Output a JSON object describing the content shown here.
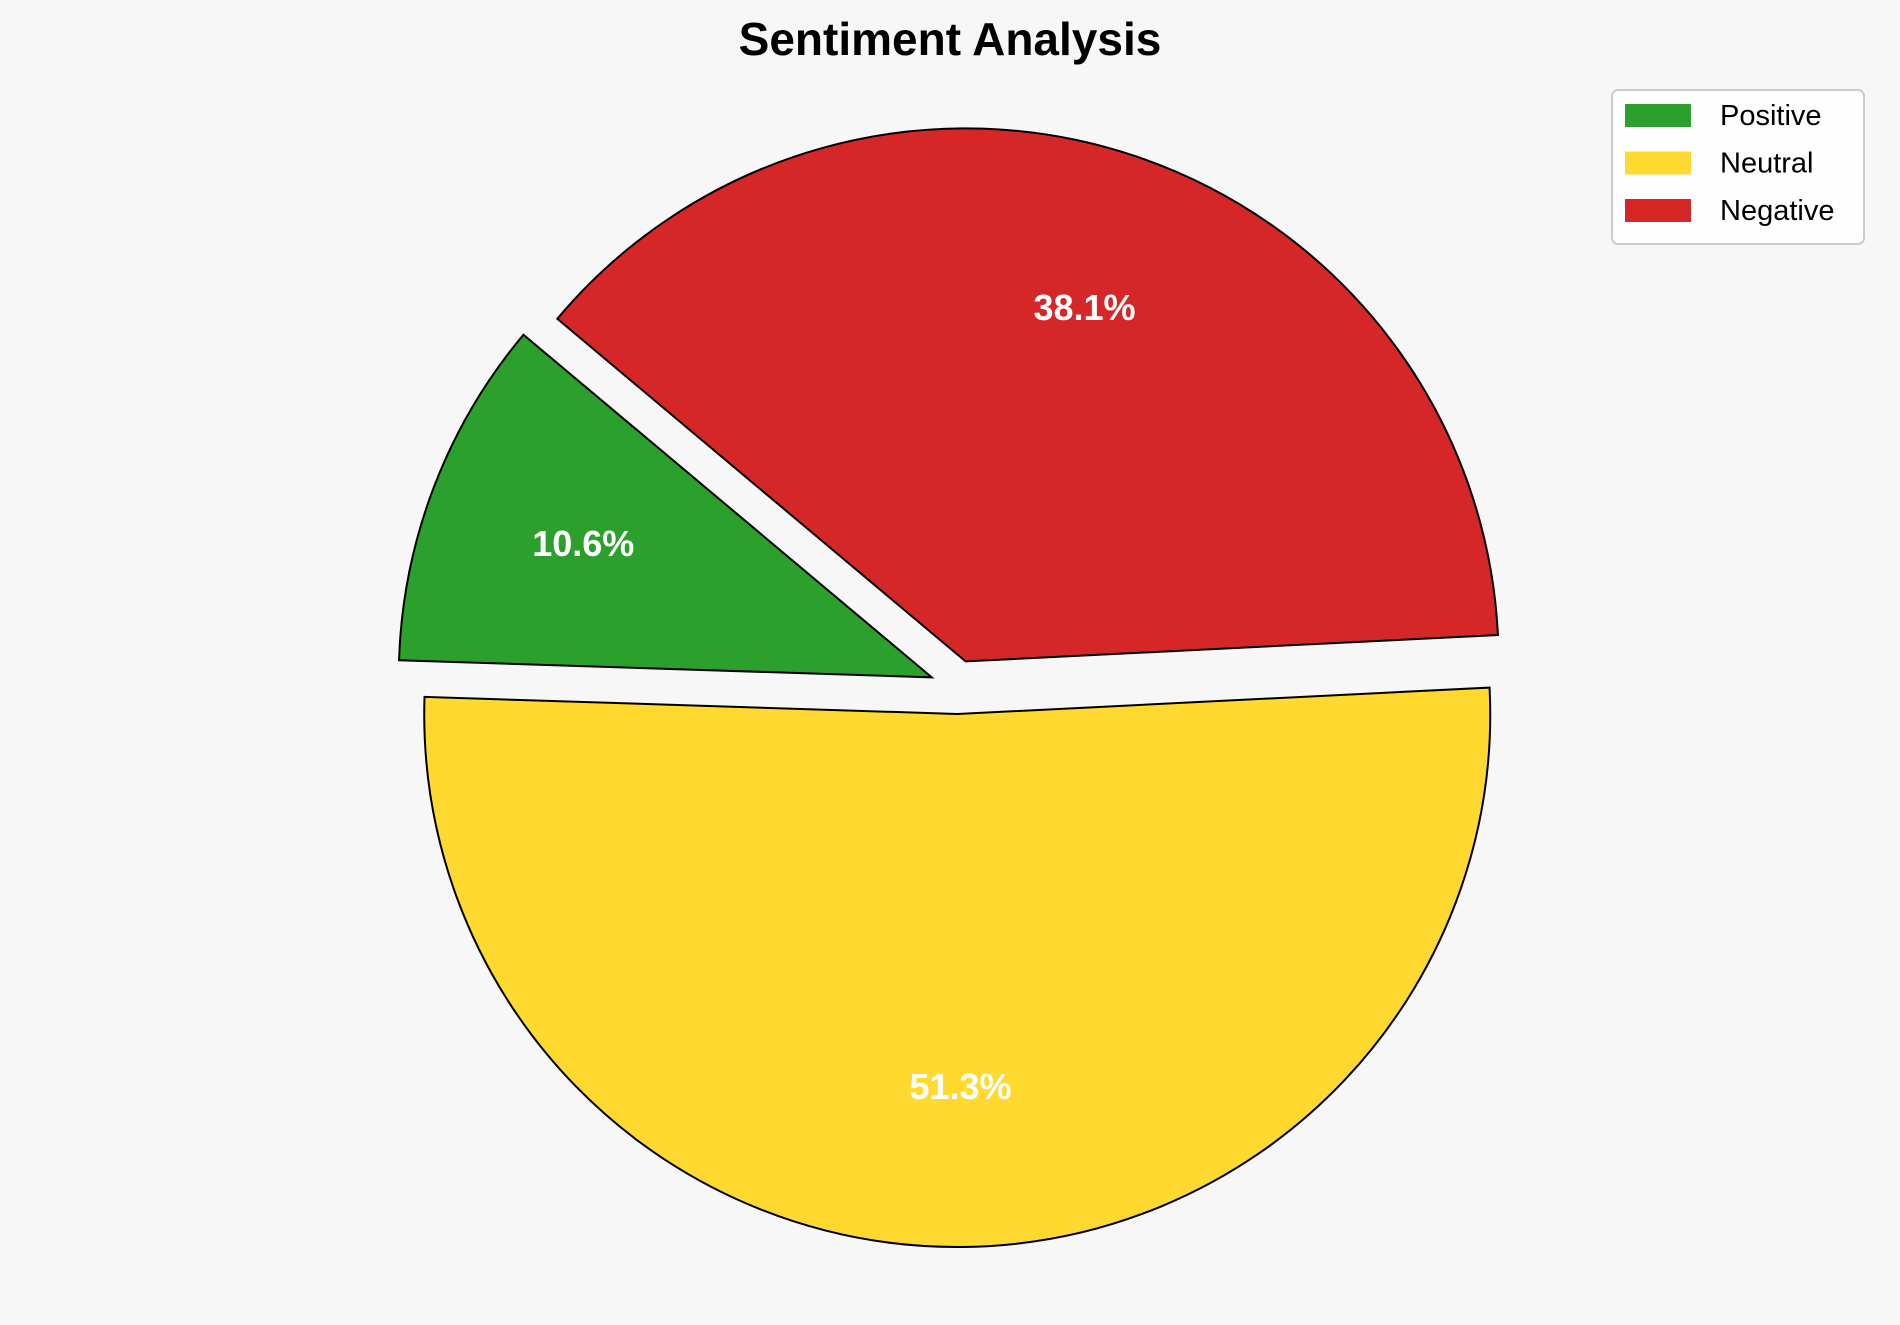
{
  "chart_data": {
    "type": "pie",
    "title": "Sentiment Analysis",
    "categories": [
      "Positive",
      "Neutral",
      "Negative"
    ],
    "values": [
      10.6,
      51.3,
      38.1
    ],
    "labels": [
      "10.6%",
      "51.3%",
      "38.1%"
    ],
    "colors": [
      "#2ca02c",
      "#ffd92f",
      "#d62728"
    ],
    "start_angle_deg": 140,
    "direction": "counterclockwise",
    "exploded": [
      true,
      true,
      true
    ],
    "legend": {
      "position": "top-right",
      "entries": [
        "Positive",
        "Neutral",
        "Negative"
      ]
    },
    "background": "#f7f7f7"
  }
}
